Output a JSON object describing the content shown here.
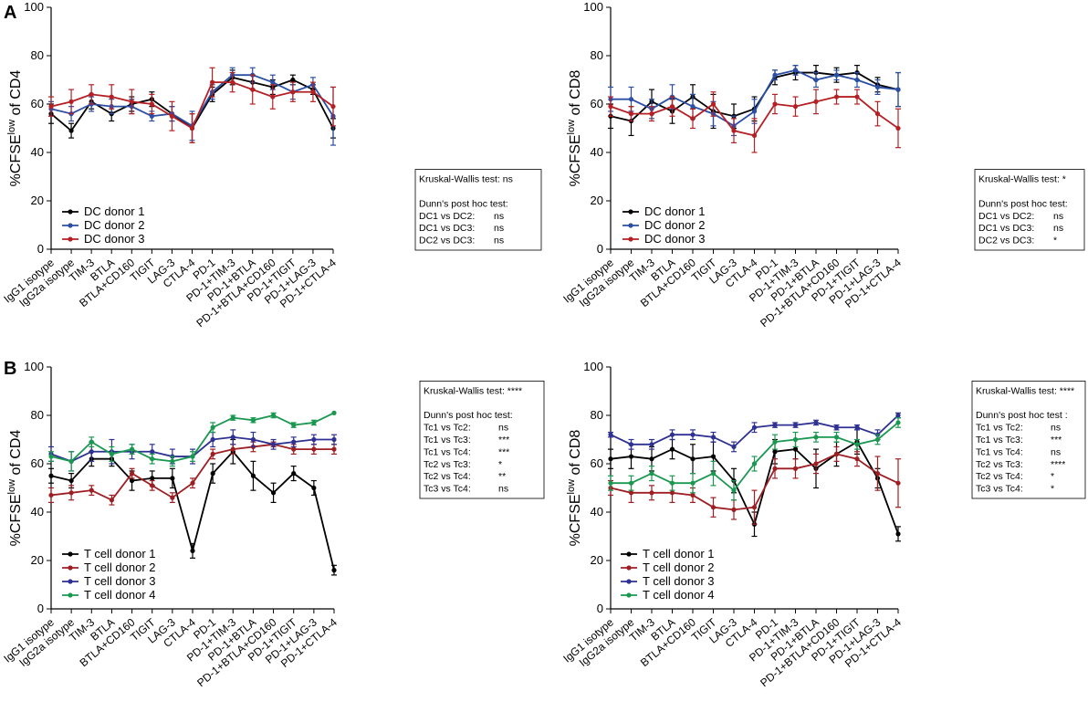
{
  "panel_letters": {
    "A": "A",
    "B": "B"
  },
  "chart_data": [
    {
      "id": "A-CD4",
      "type": "line",
      "ylabel_main": "%CFSE",
      "ylabel_sup": "low",
      "ylabel_tail": " of CD4",
      "ylim": [
        0,
        100
      ],
      "yticks": [
        0,
        20,
        40,
        60,
        80,
        100
      ],
      "categories": [
        "IgG1 isotype",
        "IgG2a isotype",
        "TIM-3",
        "BTLA",
        "BTLA+CD160",
        "TIGIT",
        "LAG-3",
        "CTLA-4",
        "PD-1",
        "PD-1+TIM-3",
        "PD-1+BTLA",
        "PD-1+BTLA+CD160",
        "PD-1+TIGIT",
        "PD-1+LAG-3",
        "PD-1+CTLA-4"
      ],
      "series": [
        {
          "name": "DC donor 1",
          "color": "#000000",
          "values": [
            56,
            49,
            61,
            56,
            60,
            62,
            56,
            50,
            64,
            71,
            69,
            67,
            70,
            66,
            50
          ],
          "errors": [
            4,
            3,
            3,
            3,
            3,
            3,
            3,
            6,
            3,
            3,
            3,
            3,
            2,
            2,
            4
          ]
        },
        {
          "name": "DC donor 2",
          "color": "#2b4fa5",
          "values": [
            58,
            56,
            60,
            59,
            59,
            55,
            56,
            51,
            65,
            72,
            72,
            69,
            65,
            68,
            55
          ],
          "errors": [
            3,
            3,
            3,
            3,
            3,
            2,
            3,
            6,
            3,
            3,
            3,
            3,
            3,
            3,
            12
          ]
        },
        {
          "name": "DC donor 3",
          "color": "#b52025",
          "values": [
            59,
            61,
            64,
            63,
            61,
            60,
            55,
            50,
            69,
            69,
            66,
            63,
            65,
            65,
            59
          ],
          "errors": [
            4,
            5,
            4,
            5,
            5,
            4,
            6,
            6,
            6,
            4,
            6,
            5,
            4,
            4,
            8
          ]
        }
      ],
      "stats": [
        "Kruskal-Wallis test: ns",
        "",
        "Dunn's post hoc test:",
        "DC1 vs DC2:|ns",
        "DC1 vs DC3:|ns",
        "DC2 vs DC3:|ns"
      ]
    },
    {
      "id": "A-CD8",
      "type": "line",
      "ylabel_main": "%CFSE",
      "ylabel_sup": "low",
      "ylabel_tail": " of CD8",
      "ylim": [
        0,
        100
      ],
      "yticks": [
        0,
        20,
        40,
        60,
        80,
        100
      ],
      "categories": [
        "IgG1 isotype",
        "IgG2a isotype",
        "TIM-3",
        "BTLA",
        "BTLA+CD160",
        "TIGIT",
        "LAG-3",
        "CTLA-4",
        "PD-1",
        "PD-1+TIM-3",
        "PD-1+BTLA",
        "PD-1+BTLA+CD160",
        "PD-1+TIGIT",
        "PD-1+LAG-3",
        "PD-1+CTLA-4"
      ],
      "series": [
        {
          "name": "DC donor 1",
          "color": "#000000",
          "values": [
            55,
            53,
            61,
            57,
            63,
            57,
            55,
            58,
            71,
            73,
            73,
            72,
            73,
            68,
            66
          ],
          "errors": [
            5,
            6,
            5,
            5,
            5,
            7,
            5,
            5,
            3,
            3,
            3,
            3,
            3,
            3,
            7
          ]
        },
        {
          "name": "DC donor 2",
          "color": "#2b4fa5",
          "values": [
            62,
            62,
            58,
            63,
            59,
            56,
            51,
            57,
            72,
            74,
            70,
            72,
            70,
            67,
            66
          ],
          "errors": [
            5,
            5,
            4,
            5,
            5,
            5,
            4,
            5,
            2,
            2,
            3,
            2,
            3,
            3,
            7
          ]
        },
        {
          "name": "DC donor 3",
          "color": "#b52025",
          "values": [
            59,
            56,
            56,
            59,
            54,
            60,
            49,
            47,
            60,
            59,
            61,
            63,
            63,
            56,
            50
          ],
          "errors": [
            4,
            3,
            3,
            4,
            4,
            5,
            5,
            7,
            4,
            4,
            5,
            3,
            3,
            5,
            8
          ]
        }
      ],
      "stats": [
        "Kruskal-Wallis test: *",
        "",
        "Dunn's post hoc test:",
        "DC1 vs DC2:|ns",
        "DC1 vs DC3:|ns",
        "DC2 vs DC3:|*"
      ]
    },
    {
      "id": "B-CD4",
      "type": "line",
      "ylabel_main": "%CFSE",
      "ylabel_sup": "low",
      "ylabel_tail": " of CD4",
      "ylim": [
        0,
        100
      ],
      "yticks": [
        0,
        20,
        40,
        60,
        80,
        100
      ],
      "categories": [
        "IgG1 isotype",
        "IgG2a isotype",
        "TIM-3",
        "BTLA",
        "BTLA+CD160",
        "TIGIT",
        "LAG-3",
        "CTLA-4",
        "PD-1",
        "PD-1+TIM-3",
        "PD-1+BTLA",
        "PD-1+BTLA+CD160",
        "PD-1+TIGIT",
        "PD-1+LAG-3",
        "PD-1+CTLA-4"
      ],
      "series": [
        {
          "name": "T cell donor 1",
          "color": "#000000",
          "values": [
            55,
            53,
            62,
            62,
            53,
            54,
            54,
            24,
            56,
            65,
            55,
            48,
            56,
            50,
            16
          ],
          "errors": [
            3,
            3,
            3,
            3,
            4,
            3,
            4,
            3,
            4,
            5,
            6,
            4,
            3,
            3,
            2
          ]
        },
        {
          "name": "T cell donor 2",
          "color": "#9e1f23",
          "values": [
            47,
            48,
            49,
            45,
            56,
            51,
            46,
            52,
            64,
            66,
            67,
            68,
            66,
            66,
            66
          ],
          "errors": [
            3,
            3,
            2,
            2,
            2,
            2,
            2,
            2,
            2,
            2,
            2,
            1,
            2,
            2,
            2
          ]
        },
        {
          "name": "T cell donor 3",
          "color": "#2e3192",
          "values": [
            64,
            61,
            65,
            65,
            65,
            65,
            63,
            63,
            70,
            71,
            70,
            68,
            69,
            70,
            70
          ],
          "errors": [
            3,
            4,
            4,
            5,
            3,
            3,
            3,
            3,
            3,
            3,
            3,
            2,
            2,
            2,
            2
          ]
        },
        {
          "name": "T cell donor 4",
          "color": "#1a9850",
          "values": [
            63,
            61,
            69,
            64,
            66,
            62,
            61,
            63,
            75,
            79,
            78,
            80,
            76,
            77,
            81
          ],
          "errors": [
            2,
            4,
            2,
            3,
            2,
            2,
            2,
            2,
            2,
            1,
            1,
            1,
            1,
            1,
            0
          ]
        }
      ],
      "stats": [
        "Kruskal-Wallis test: ****",
        "",
        "Dunn's post hoc test:",
        "Tc1 vs Tc2:|ns",
        "Tc1 vs Tc3:|***",
        "Tc1 vs Tc4:|***",
        "Tc2 vs Tc3:|*",
        "Tc2 vs Tc4:|**",
        "Tc3 vs Tc4:|ns"
      ]
    },
    {
      "id": "B-CD8",
      "type": "line",
      "ylabel_main": "%CFSE",
      "ylabel_sup": "low",
      "ylabel_tail": " of CD8",
      "ylim": [
        0,
        100
      ],
      "yticks": [
        0,
        20,
        40,
        60,
        80,
        100
      ],
      "categories": [
        "IgG1 isotype",
        "IgG2a isotype",
        "TIM-3",
        "BTLA",
        "BTLA+CD160",
        "TIGIT",
        "LAG-3",
        "CTLA-4",
        "PD-1",
        "PD-1+TIM-3",
        "PD-1+BTLA",
        "PD-1+BTLA+CD160",
        "PD-1+TIGIT",
        "PD-1+LAG-3",
        "PD-1+CTLA-4"
      ],
      "series": [
        {
          "name": "T cell donor 1",
          "color": "#000000",
          "values": [
            62,
            63,
            62,
            66,
            62,
            63,
            53,
            35,
            65,
            66,
            58,
            64,
            69,
            54,
            31
          ],
          "errors": [
            4,
            5,
            5,
            4,
            6,
            6,
            5,
            5,
            5,
            4,
            8,
            5,
            5,
            4,
            3
          ]
        },
        {
          "name": "T cell donor 2",
          "color": "#9e1f23",
          "values": [
            50,
            48,
            48,
            48,
            47,
            42,
            41,
            42,
            58,
            58,
            60,
            64,
            62,
            56,
            52
          ],
          "errors": [
            3,
            4,
            3,
            4,
            3,
            4,
            4,
            7,
            4,
            4,
            4,
            3,
            3,
            7,
            10
          ]
        },
        {
          "name": "T cell donor 3",
          "color": "#2e3192",
          "values": [
            72,
            68,
            68,
            72,
            72,
            71,
            67,
            75,
            76,
            76,
            77,
            75,
            75,
            72,
            80
          ],
          "errors": [
            1,
            2,
            2,
            2,
            2,
            2,
            2,
            2,
            1,
            1,
            1,
            1,
            1,
            2,
            1
          ]
        },
        {
          "name": "T cell donor 4",
          "color": "#1a9850",
          "values": [
            52,
            52,
            56,
            52,
            52,
            56,
            49,
            60,
            69,
            70,
            71,
            71,
            68,
            70,
            77
          ],
          "errors": [
            3,
            3,
            3,
            3,
            4,
            5,
            4,
            3,
            3,
            3,
            2,
            2,
            2,
            2,
            2
          ]
        }
      ],
      "stats": [
        "Kruskal-Wallis test: ****",
        "",
        "Dunn's post hoc test :",
        "Tc1 vs Tc2:|ns",
        "Tc1 vs Tc3:|***",
        "Tc1 vs Tc4:|ns",
        "Tc2 vs Tc3:|****",
        "Tc2 vs Tc4:|*",
        "Tc3 vs Tc4:|*"
      ]
    }
  ]
}
